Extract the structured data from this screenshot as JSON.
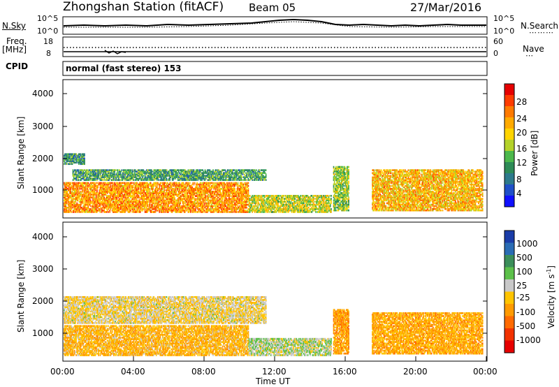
{
  "header": {
    "station": "Zhongshan Station (fitACF)",
    "beam": "Beam 05",
    "date": "27/Mar/2016"
  },
  "top_panels": {
    "nsky_label": "N.Sky",
    "nsky_ticks": [
      "10^5",
      "10^0"
    ],
    "nsearch_label": "N.Search",
    "nsearch_ticks": [
      "10^5",
      "10^0"
    ],
    "freq_label": "Freq.",
    "freq_unit": "[MHz]",
    "freq_ticks": [
      "18",
      "8"
    ],
    "nave_label": "Nave",
    "nave_ticks": [
      "60",
      "0"
    ],
    "cpid_label": "CPID",
    "cpid_text": "normal (fast stereo) 153"
  },
  "power_panel": {
    "ylabel": "Slant Range [km]",
    "yticks": [
      "4000",
      "3000",
      "2000",
      "1000"
    ],
    "colorbar_label": "Power [dB]",
    "colorbar_ticks": [
      "28",
      "24",
      "20",
      "16",
      "12",
      "8",
      "4"
    ],
    "colorbar_colors": [
      "#e60000",
      "#ff3c00",
      "#ff7a00",
      "#ffaa00",
      "#ffd400",
      "#b4d22a",
      "#4cb84c",
      "#2e8b57",
      "#2d7a8c",
      "#2050c8",
      "#1010ff"
    ]
  },
  "velocity_panel": {
    "ylabel": "Slant Range [km]",
    "yticks": [
      "4000",
      "3000",
      "2000",
      "1000"
    ],
    "colorbar_label": "Velocity [m s",
    "colorbar_exp": "-1",
    "colorbar_ticks": [
      "1000",
      "500",
      "100",
      "25",
      "-25",
      "-100",
      "-500",
      "-1000"
    ],
    "colorbar_colors": [
      "#1a3ca8",
      "#2a6cb4",
      "#3b8e5a",
      "#5cc04a",
      "#c8c8c8",
      "#ffc400",
      "#ff9a00",
      "#ff6a00",
      "#f23200",
      "#e60000"
    ]
  },
  "xaxis": {
    "ticks": [
      "00:00",
      "04:00",
      "08:00",
      "12:00",
      "16:00",
      "20:00",
      "00:00"
    ],
    "label": "Time UT"
  },
  "chart_data": [
    {
      "type": "heatmap",
      "title": "Zhongshan Station (fitACF) Beam 05",
      "xlabel": "Time UT",
      "ylabel": "Slant Range [km]",
      "x_range_hours": [
        0,
        24
      ],
      "ylim": [
        180,
        4500
      ],
      "colorbar": {
        "label": "Power [dB]",
        "range": [
          0,
          30
        ]
      },
      "echo_regions": [
        {
          "t_start": 0.0,
          "t_end": 10.5,
          "range_low": 350,
          "range_high": 1300,
          "power_dB": 22
        },
        {
          "t_start": 0.5,
          "t_end": 11.5,
          "range_low": 1350,
          "range_high": 1700,
          "power_dB": 10
        },
        {
          "t_start": 0.0,
          "t_end": 1.2,
          "range_low": 1850,
          "range_high": 2200,
          "power_dB": 9
        },
        {
          "t_start": 10.5,
          "t_end": 15.2,
          "range_low": 350,
          "range_high": 900,
          "power_dB": 16
        },
        {
          "t_start": 15.3,
          "t_end": 16.2,
          "range_low": 400,
          "range_high": 1800,
          "power_dB": 14
        },
        {
          "t_start": 17.5,
          "t_end": 23.8,
          "range_low": 400,
          "range_high": 1700,
          "power_dB": 20
        }
      ]
    },
    {
      "type": "heatmap",
      "title": "Zhongshan Station (fitACF) Beam 05",
      "xlabel": "Time UT",
      "ylabel": "Slant Range [km]",
      "x_range_hours": [
        0,
        24
      ],
      "ylim": [
        180,
        4500
      ],
      "colorbar": {
        "label": "Velocity [m s-1]",
        "range": [
          -1000,
          1000
        ]
      },
      "echo_regions": [
        {
          "t_start": 0.0,
          "t_end": 10.5,
          "range_low": 350,
          "range_high": 1300,
          "velocity": -200
        },
        {
          "t_start": 0.0,
          "t_end": 11.5,
          "range_low": 1350,
          "range_high": 2200,
          "velocity": 0
        },
        {
          "t_start": 10.5,
          "t_end": 15.2,
          "range_low": 350,
          "range_high": 900,
          "velocity": 150
        },
        {
          "t_start": 15.3,
          "t_end": 16.2,
          "range_low": 400,
          "range_high": 1800,
          "velocity": -300
        },
        {
          "t_start": 17.5,
          "t_end": 23.8,
          "range_low": 400,
          "range_high": 1700,
          "velocity": -250
        }
      ]
    }
  ]
}
